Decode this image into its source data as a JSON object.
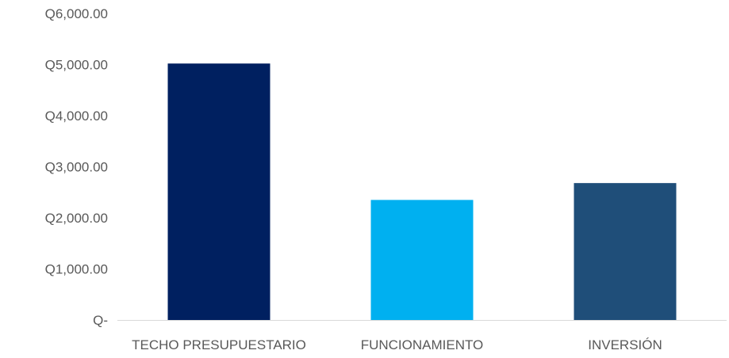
{
  "chart_data": {
    "type": "bar",
    "title": "",
    "xlabel": "",
    "ylabel": "",
    "categories": [
      "TECHO PRESUPUESTARIO",
      "FUNCIONAMIENTO",
      "INVERSIÓN"
    ],
    "values": [
      5020,
      2350,
      2680
    ],
    "ylim": [
      0,
      6000
    ],
    "yticks": [
      0,
      1000,
      2000,
      3000,
      4000,
      5000,
      6000
    ],
    "ytick_labels": [
      "Q-",
      "Q1,000.00",
      "Q2,000.00",
      "Q3,000.00",
      "Q4,000.00",
      "Q5,000.00",
      "Q6,000.00"
    ],
    "bar_colors": [
      "#002060",
      "#00B0F0",
      "#1F4E79"
    ],
    "grid": false,
    "legend": "none",
    "axis_color": "#D9D9D9",
    "text_color": "#595959"
  }
}
